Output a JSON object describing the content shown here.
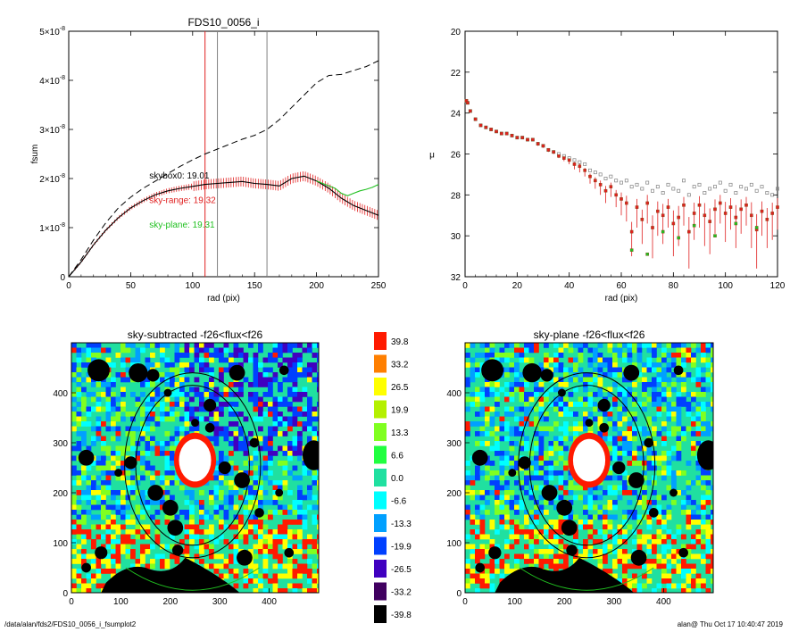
{
  "footer": {
    "path": "/data/alan/fds2/FDS10_0056_i_fsumplot2",
    "stamp": "alan@  Thu Oct 17 10:40:47 2019"
  },
  "chart_data": [
    {
      "type": "line",
      "title": "FDS10_0056_i",
      "xlabel": "rad (pix)",
      "ylabel": "fsum",
      "xlim": [
        0,
        250
      ],
      "ylim": [
        0,
        5e-08
      ],
      "xticks": [
        "0",
        "50",
        "100",
        "150",
        "200",
        "250"
      ],
      "yticks": [
        {
          "mant": "0",
          "exp": ""
        },
        {
          "mant": "1×10",
          "exp": "-8"
        },
        {
          "mant": "2×10",
          "exp": "-8"
        },
        {
          "mant": "3×10",
          "exp": "-8"
        },
        {
          "mant": "4×10",
          "exp": "-8"
        },
        {
          "mant": "5×10",
          "exp": "-8"
        }
      ],
      "vlines": [
        {
          "x": 110,
          "color": "#e02020"
        },
        {
          "x": 120,
          "color": "#808080"
        },
        {
          "x": 160,
          "color": "#808080"
        }
      ],
      "annotations": [
        {
          "text": "skybox0: 19.01",
          "x": 65,
          "y": 2e-08,
          "color": "#000000"
        },
        {
          "text": "sky-range: 19.32",
          "x": 65,
          "y": 1.5e-08,
          "color": "#e02020"
        },
        {
          "text": "sky-plane: 19.31",
          "x": 65,
          "y": 1e-08,
          "color": "#20c020"
        }
      ],
      "series": [
        {
          "style": "dashed",
          "color": "#000000",
          "x": [
            0,
            10,
            20,
            30,
            40,
            50,
            60,
            70,
            80,
            90,
            100,
            110,
            120,
            130,
            140,
            150,
            160,
            170,
            180,
            190,
            200,
            210,
            220,
            230,
            240,
            250
          ],
          "y": [
            0,
            3.5e-09,
            7.5e-09,
            1.1e-08,
            1.4e-08,
            1.62e-08,
            1.8e-08,
            1.95e-08,
            2.1e-08,
            2.25e-08,
            2.38e-08,
            2.5e-08,
            2.6e-08,
            2.7e-08,
            2.8e-08,
            2.88e-08,
            3e-08,
            3.2e-08,
            3.45e-08,
            3.7e-08,
            3.95e-08,
            4.1e-08,
            4.12e-08,
            4.2e-08,
            4.28e-08,
            4.4e-08
          ]
        },
        {
          "style": "solid",
          "color": "#000000",
          "errorbars": true,
          "errcolor": "#e02020",
          "x": [
            0,
            10,
            20,
            30,
            40,
            50,
            60,
            70,
            80,
            90,
            100,
            110,
            120,
            130,
            140,
            150,
            160,
            170,
            180,
            190,
            200,
            210,
            220,
            230,
            240,
            250
          ],
          "y": [
            0,
            3e-09,
            6.5e-09,
            9.5e-09,
            1.2e-08,
            1.4e-08,
            1.55e-08,
            1.67e-08,
            1.75e-08,
            1.8e-08,
            1.84e-08,
            1.88e-08,
            1.9e-08,
            1.92e-08,
            1.94e-08,
            1.9e-08,
            1.88e-08,
            1.85e-08,
            2e-08,
            2.05e-08,
            1.95e-08,
            1.8e-08,
            1.6e-08,
            1.45e-08,
            1.35e-08,
            1.25e-08
          ]
        },
        {
          "style": "solid",
          "color": "#20c020",
          "x": [
            200,
            205,
            210,
            215,
            220,
            225,
            230,
            235,
            240,
            245,
            250
          ],
          "y": [
            1.95e-08,
            1.9e-08,
            1.85e-08,
            1.8e-08,
            1.7e-08,
            1.65e-08,
            1.7e-08,
            1.75e-08,
            1.78e-08,
            1.82e-08,
            1.88e-08
          ]
        }
      ]
    },
    {
      "type": "scatter",
      "title": "",
      "xlabel": "rad (pix)",
      "ylabel": "μ",
      "xlim": [
        0,
        120
      ],
      "ylim": [
        32,
        20
      ],
      "xticks": [
        "0",
        "20",
        "40",
        "60",
        "80",
        "100",
        "120"
      ],
      "yticks": [
        "20",
        "22",
        "24",
        "26",
        "28",
        "30",
        "32"
      ],
      "series": [
        {
          "marker": "square",
          "color": "#808080",
          "x": [
            0.5,
            1,
            2,
            4,
            6,
            8,
            10,
            12,
            14,
            16,
            18,
            20,
            22,
            24,
            26,
            28,
            30,
            32,
            34,
            36,
            38,
            40,
            42,
            44,
            46,
            48,
            50,
            52,
            54,
            56,
            58,
            60,
            62,
            64,
            66,
            68,
            70,
            72,
            74,
            76,
            78,
            80,
            82,
            84,
            86,
            88,
            90,
            92,
            94,
            96,
            98,
            100,
            102,
            104,
            106,
            108,
            110,
            112,
            114,
            116,
            118,
            120
          ],
          "y": [
            23.4,
            23.5,
            23.9,
            24.3,
            24.6,
            24.7,
            24.8,
            24.9,
            25.0,
            25.0,
            25.1,
            25.2,
            25.2,
            25.3,
            25.3,
            25.5,
            25.6,
            25.8,
            25.9,
            26.0,
            26.1,
            26.2,
            26.3,
            26.4,
            26.5,
            26.8,
            26.9,
            27.0,
            27.2,
            27.1,
            27.3,
            27.4,
            27.3,
            27.6,
            27.5,
            27.7,
            27.4,
            27.8,
            27.6,
            27.9,
            27.5,
            27.7,
            27.8,
            27.3,
            28.0,
            27.6,
            27.5,
            27.9,
            27.7,
            27.6,
            27.4,
            27.8,
            27.5,
            27.9,
            27.6,
            27.7,
            27.5,
            27.8,
            27.6,
            27.9,
            28.0,
            27.7
          ]
        },
        {
          "marker": "square",
          "color": "#e02020",
          "errorbars": true,
          "x": [
            0.5,
            1,
            2,
            4,
            6,
            8,
            10,
            12,
            14,
            16,
            18,
            20,
            22,
            24,
            26,
            28,
            30,
            32,
            34,
            36,
            38,
            40,
            42,
            44,
            46,
            48,
            50,
            52,
            54,
            56,
            58,
            60,
            62,
            64,
            66,
            68,
            70,
            72,
            74,
            76,
            78,
            80,
            82,
            84,
            86,
            88,
            90,
            92,
            94,
            96,
            98,
            100,
            102,
            104,
            106,
            108,
            110,
            112,
            114,
            116,
            118,
            120
          ],
          "y": [
            23.4,
            23.5,
            23.9,
            24.3,
            24.6,
            24.7,
            24.8,
            24.9,
            25.0,
            25.0,
            25.1,
            25.2,
            25.2,
            25.3,
            25.3,
            25.5,
            25.6,
            25.8,
            25.9,
            26.1,
            26.2,
            26.3,
            26.5,
            26.6,
            26.8,
            27.1,
            27.3,
            27.5,
            27.8,
            27.6,
            28.0,
            28.2,
            28.4,
            29.8,
            28.6,
            29.2,
            28.4,
            29.6,
            28.8,
            29.0,
            28.6,
            29.4,
            29.1,
            28.5,
            29.8,
            28.9,
            28.5,
            29.0,
            29.3,
            28.7,
            28.4,
            28.9,
            28.6,
            29.1,
            28.7,
            28.5,
            29.0,
            29.7,
            28.8,
            29.2,
            28.9,
            28.6
          ],
          "err": [
            0.05,
            0.05,
            0.05,
            0.05,
            0.05,
            0.05,
            0.05,
            0.05,
            0.05,
            0.05,
            0.05,
            0.05,
            0.05,
            0.05,
            0.05,
            0.1,
            0.1,
            0.1,
            0.1,
            0.1,
            0.15,
            0.2,
            0.25,
            0.3,
            0.3,
            0.35,
            0.4,
            0.5,
            0.6,
            0.5,
            0.6,
            0.8,
            0.9,
            1.2,
            1.0,
            1.2,
            1.0,
            1.5,
            1.2,
            1.4,
            1.0,
            1.6,
            1.4,
            1.0,
            1.8,
            1.3,
            1.1,
            1.5,
            1.6,
            1.2,
            1.0,
            1.4,
            1.1,
            1.5,
            1.2,
            1.0,
            1.6,
            1.9,
            1.2,
            1.4,
            1.3,
            1.1
          ]
        },
        {
          "marker": "square",
          "color": "#20c020",
          "x": [
            64,
            70,
            76,
            82,
            88,
            96,
            104,
            112
          ],
          "y": [
            30.7,
            30.9,
            29.8,
            30.1,
            29.5,
            30.0,
            29.4,
            29.6
          ]
        }
      ]
    },
    {
      "type": "heatmap",
      "title": "sky-subtracted -f26<flux<f26",
      "xlim": [
        0,
        500
      ],
      "ylim": [
        0,
        500
      ],
      "xticks": [
        "0",
        "100",
        "200",
        "300",
        "400"
      ],
      "yticks": [
        "0",
        "100",
        "200",
        "300",
        "400"
      ]
    },
    {
      "type": "heatmap",
      "title": "sky-plane -f26<flux<f26",
      "xlim": [
        0,
        500
      ],
      "ylim": [
        0,
        500
      ],
      "xticks": [
        "0",
        "100",
        "200",
        "300",
        "400"
      ],
      "yticks": [
        "0",
        "100",
        "200",
        "300",
        "400"
      ]
    }
  ],
  "colorbar": {
    "labels": [
      "39.8",
      "33.2",
      "26.5",
      "19.9",
      "13.3",
      "6.6",
      "0.0",
      "-6.6",
      "-13.3",
      "-19.9",
      "-26.5",
      "-33.2",
      "-39.8"
    ],
    "colors": [
      "#ff1a00",
      "#ff7f00",
      "#ffff00",
      "#b4f000",
      "#80ff20",
      "#20ff40",
      "#20e0a0",
      "#00ffff",
      "#00a0ff",
      "#0040ff",
      "#4000c0",
      "#400060",
      "#000000"
    ]
  }
}
